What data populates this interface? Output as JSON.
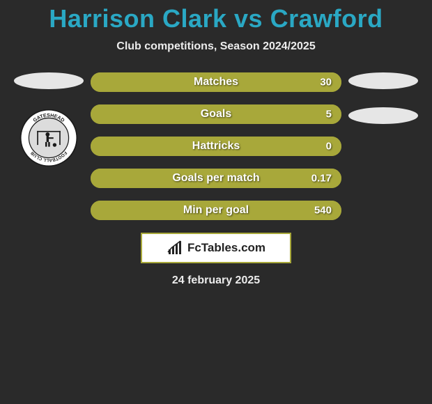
{
  "title": "Harrison Clark vs Crawford",
  "subtitle": "Club competitions, Season 2024/2025",
  "date": "24 february 2025",
  "brand": {
    "text": "FcTables.com"
  },
  "pill_color": "#e6e6e6",
  "bar_border_color": "#a8a83a",
  "bar_fill_color": "#a8a83a",
  "title_color": "#2aa8c4",
  "background_color": "#2a2a2a",
  "text_color": "#ececec",
  "badge": {
    "top_text": "GATESHEAD",
    "bottom_text": "FOOTBALL CLUB",
    "ring_fill": "#ffffff",
    "ring_stroke": "#1a1a1a",
    "text_color": "#1a1a1a"
  },
  "stats": [
    {
      "label": "Matches",
      "value": "30",
      "fill_pct": 100
    },
    {
      "label": "Goals",
      "value": "5",
      "fill_pct": 100
    },
    {
      "label": "Hattricks",
      "value": "0",
      "fill_pct": 100
    },
    {
      "label": "Goals per match",
      "value": "0.17",
      "fill_pct": 100
    },
    {
      "label": "Min per goal",
      "value": "540",
      "fill_pct": 100
    }
  ]
}
